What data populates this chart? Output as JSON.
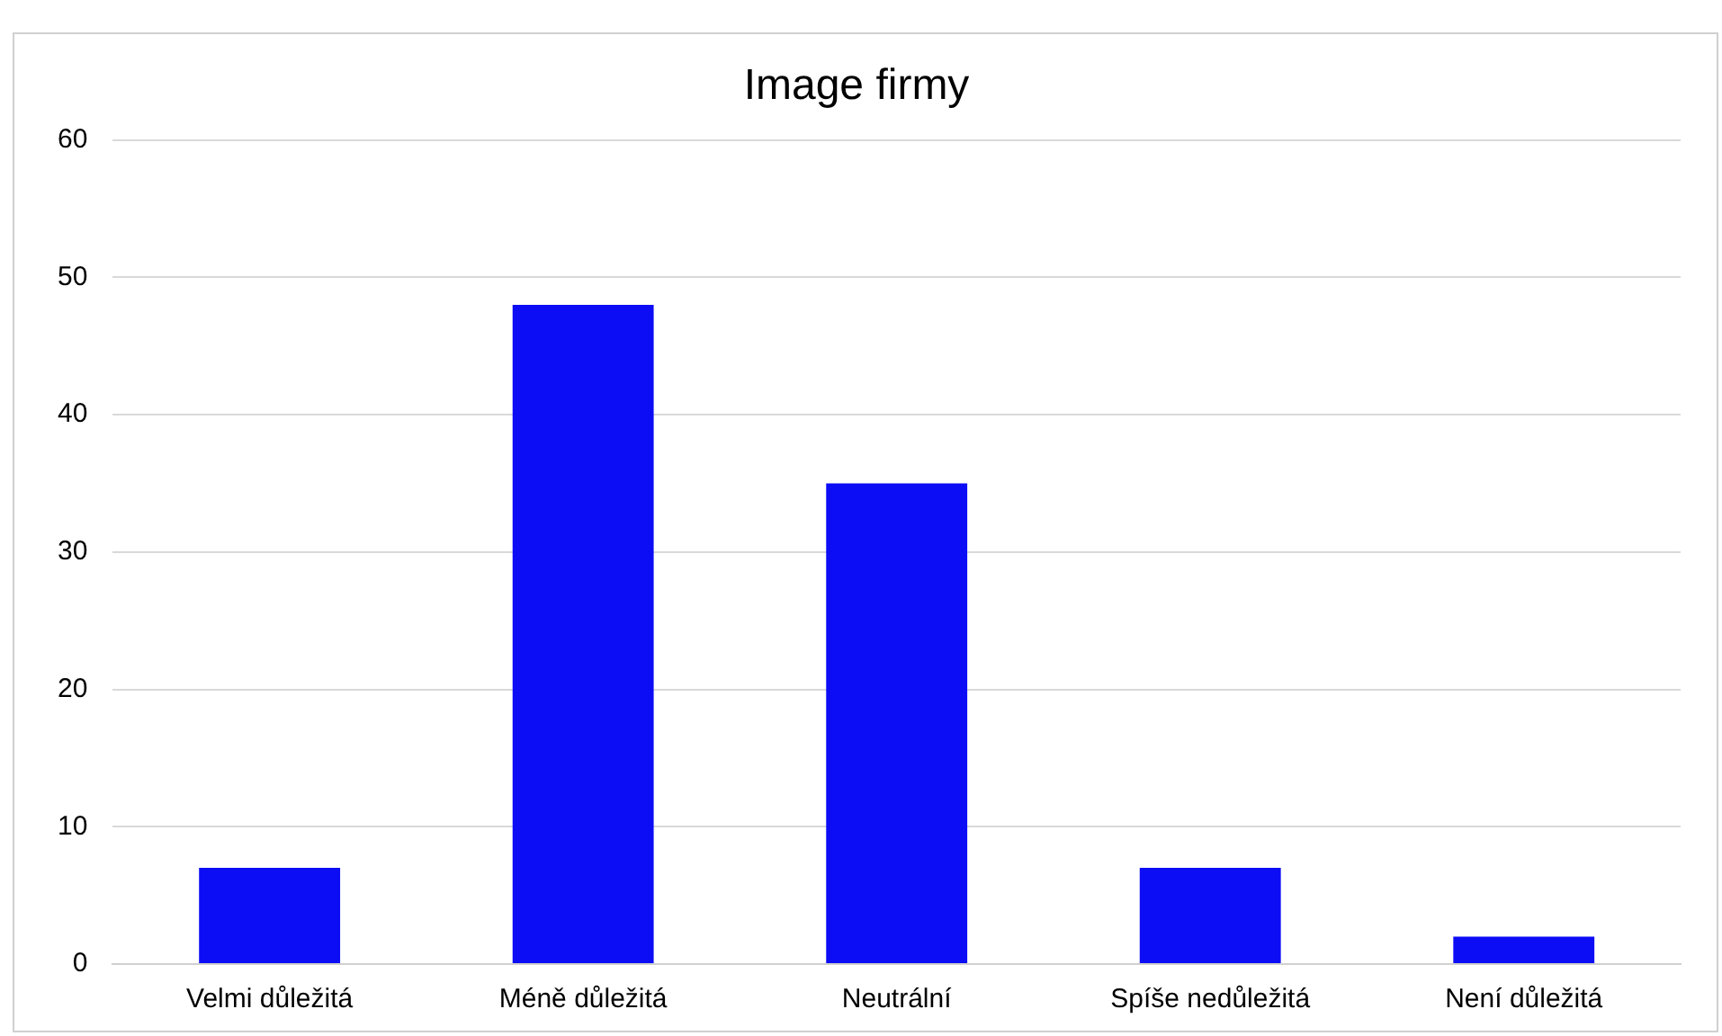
{
  "chart_data": {
    "type": "bar",
    "title": "Image firmy",
    "categories": [
      "Velmi důležitá",
      "Méně důležitá",
      "Neutrální",
      "Spíše nedůležitá",
      "Není důležitá"
    ],
    "values": [
      7,
      48,
      35,
      7,
      2
    ],
    "color": "#0c0cf5",
    "ylim": [
      0,
      60
    ],
    "yticks": [
      0,
      10,
      20,
      30,
      40,
      50,
      60
    ],
    "grid": "y",
    "legend": false
  }
}
